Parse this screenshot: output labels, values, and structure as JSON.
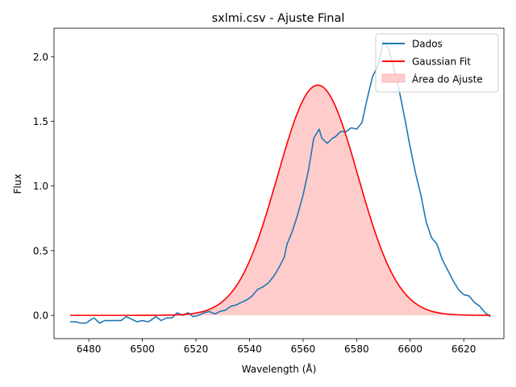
{
  "chart_data": {
    "type": "line",
    "title": "sxlmi.csv - Ajuste Final",
    "xlabel": "Wavelength (Å)",
    "ylabel": "Flux",
    "xlim": [
      6467,
      6635
    ],
    "ylim": [
      -0.18,
      2.22
    ],
    "x_ticks": [
      6480,
      6500,
      6520,
      6540,
      6560,
      6580,
      6600,
      6620
    ],
    "y_ticks": [
      0.0,
      0.5,
      1.0,
      1.5,
      2.0
    ],
    "x_tick_labels": [
      "6480",
      "6500",
      "6520",
      "6540",
      "6560",
      "6580",
      "6600",
      "6620"
    ],
    "y_tick_labels": [
      "0.0",
      "0.5",
      "1.0",
      "1.5",
      "2.0"
    ],
    "grid": false,
    "legend_position": "top-right",
    "series": [
      {
        "name": "Dados",
        "kind": "line",
        "color": "#1f77b4",
        "x": [
          6473,
          6475,
          6477,
          6479,
          6481,
          6482,
          6484,
          6486,
          6488,
          6490,
          6492,
          6494,
          6496,
          6498,
          6500,
          6502,
          6503,
          6505,
          6507,
          6509,
          6511,
          6513,
          6515,
          6517,
          6519,
          6521,
          6523,
          6525,
          6527,
          6529,
          6531,
          6533,
          6535,
          6537,
          6539,
          6541,
          6543,
          6545,
          6547,
          6549,
          6551,
          6553,
          6554,
          6556,
          6558,
          6560,
          6562,
          6564,
          6566,
          6567,
          6569,
          6571,
          6572,
          6574,
          6576,
          6578,
          6580,
          6582,
          6584,
          6586,
          6588,
          6590,
          6592,
          6594,
          6596,
          6598,
          6600,
          6602,
          6604,
          6606,
          6608,
          6610,
          6612,
          6614,
          6616,
          6618,
          6620,
          6622,
          6624,
          6626,
          6628,
          6630
        ],
        "y": [
          -0.05,
          -0.05,
          -0.06,
          -0.06,
          -0.03,
          -0.02,
          -0.06,
          -0.04,
          -0.04,
          -0.04,
          -0.04,
          -0.01,
          -0.03,
          -0.05,
          -0.04,
          -0.05,
          -0.04,
          -0.01,
          -0.04,
          -0.02,
          -0.02,
          0.02,
          0.0,
          0.02,
          -0.01,
          0.0,
          0.02,
          0.03,
          0.01,
          0.03,
          0.04,
          0.07,
          0.08,
          0.1,
          0.12,
          0.15,
          0.2,
          0.22,
          0.25,
          0.3,
          0.37,
          0.45,
          0.55,
          0.65,
          0.78,
          0.93,
          1.12,
          1.37,
          1.44,
          1.37,
          1.33,
          1.37,
          1.38,
          1.42,
          1.42,
          1.45,
          1.44,
          1.49,
          1.68,
          1.85,
          1.93,
          2.12,
          2.06,
          1.9,
          1.73,
          1.52,
          1.3,
          1.1,
          0.93,
          0.72,
          0.6,
          0.55,
          0.43,
          0.35,
          0.27,
          0.2,
          0.16,
          0.15,
          0.1,
          0.07,
          0.02,
          -0.01
        ],
        "note": ""
      },
      {
        "name": "Gaussian Fit",
        "kind": "line",
        "color": "#ff0000",
        "amplitude": 1.78,
        "center": 6565.5,
        "sigma": 15.0
      },
      {
        "name": "Área do Ajuste",
        "kind": "area",
        "color": "#ffcccc",
        "under": "Gaussian Fit"
      }
    ]
  }
}
